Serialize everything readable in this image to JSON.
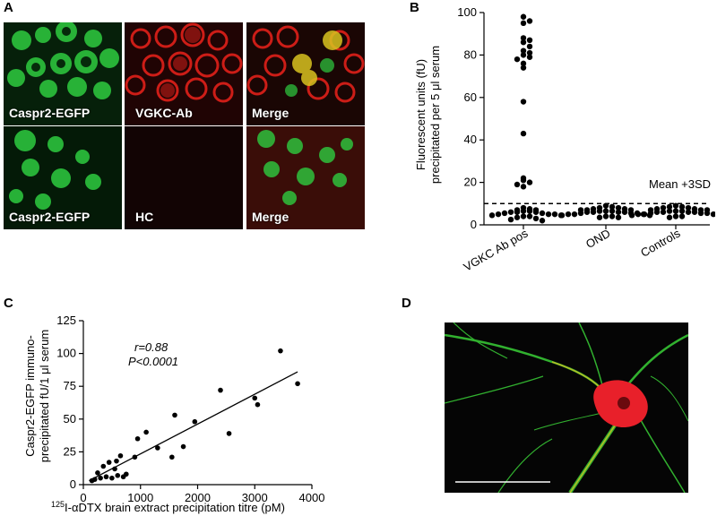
{
  "panel_letters": {
    "a": "A",
    "b": "B",
    "c": "C",
    "d": "D"
  },
  "panel_a": {
    "tiles": [
      {
        "label": "Caspr2-EGFP",
        "channel": "green"
      },
      {
        "label": "VGKC-Ab",
        "channel": "red"
      },
      {
        "label": "Merge",
        "channel": "merge"
      },
      {
        "label": "Caspr2-EGFP",
        "channel": "green"
      },
      {
        "label": "HC",
        "channel": "dark"
      },
      {
        "label": "Merge",
        "channel": "merge-dim"
      }
    ],
    "colors": {
      "green": "#2ecc40",
      "red": "#e0201a",
      "dark": "#120404"
    }
  },
  "chart_data": [
    {
      "type": "scatter",
      "panel": "B",
      "ylabel_line1": "Fluorescent units (fU)",
      "ylabel_line2": "precipitated per 5 μl serum",
      "categories": [
        "VGKC Ab pos",
        "OND",
        "Controls"
      ],
      "ylim": [
        0,
        100
      ],
      "yticks": [
        0,
        20,
        40,
        60,
        80,
        100
      ],
      "threshold": {
        "value": 10,
        "label": "Mean +3SD",
        "style": "dashed"
      },
      "series": [
        {
          "category": "VGKC Ab pos",
          "values": [
            98,
            96,
            95,
            88,
            87,
            86,
            84,
            82,
            81,
            80,
            79,
            78,
            76,
            74,
            58,
            43,
            22,
            21,
            20,
            19,
            18,
            8,
            7.5,
            7,
            7,
            6.5,
            6.5,
            6,
            6,
            6,
            5.5,
            5.5,
            5,
            5,
            5,
            4.5,
            4.5,
            4,
            4,
            3.5,
            3,
            2.5,
            2
          ]
        },
        {
          "category": "OND",
          "values": [
            9,
            8.5,
            8,
            8,
            7.5,
            7.5,
            7,
            7,
            7,
            6.5,
            6.5,
            6.5,
            6,
            6,
            6,
            6,
            5.5,
            5.5,
            5.5,
            5,
            5,
            5,
            4.5,
            4.5,
            4,
            4,
            3.5,
            3.5
          ]
        },
        {
          "category": "Controls",
          "values": [
            9,
            8.5,
            8.5,
            8,
            8,
            7.5,
            7.5,
            7,
            7,
            7,
            6.5,
            6.5,
            6.5,
            6,
            6,
            6,
            6,
            5.5,
            5.5,
            5.5,
            5,
            5,
            5,
            4.5,
            4.5,
            4,
            4,
            3.5
          ]
        }
      ],
      "grid": false,
      "marker_color": "#000000"
    },
    {
      "type": "scatter",
      "panel": "C",
      "ylabel_line1": "Caspr2-EGFP immuno-",
      "ylabel_line2": "precipitated fU/1 μl serum",
      "xlabel_sup": "125",
      "xlabel": "I-αDTX brain extract precipitation titre (pM)",
      "xlim": [
        0,
        4000
      ],
      "ylim": [
        0,
        125
      ],
      "xticks": [
        0,
        1000,
        2000,
        3000,
        4000
      ],
      "yticks": [
        0,
        25,
        50,
        75,
        100,
        125
      ],
      "annotation_r": "r=0.88",
      "annotation_p": "P<0.0001",
      "fit_line": {
        "x": [
          100,
          3750
        ],
        "y": [
          3,
          86
        ]
      },
      "points": [
        [
          150,
          3
        ],
        [
          200,
          4
        ],
        [
          250,
          9
        ],
        [
          300,
          5
        ],
        [
          350,
          14
        ],
        [
          400,
          6
        ],
        [
          450,
          17
        ],
        [
          500,
          5
        ],
        [
          550,
          12
        ],
        [
          580,
          18
        ],
        [
          600,
          7
        ],
        [
          650,
          22
        ],
        [
          700,
          6
        ],
        [
          750,
          8
        ],
        [
          900,
          21
        ],
        [
          950,
          35
        ],
        [
          1100,
          40
        ],
        [
          1300,
          28
        ],
        [
          1550,
          21
        ],
        [
          1600,
          53
        ],
        [
          1750,
          29
        ],
        [
          1950,
          48
        ],
        [
          2400,
          72
        ],
        [
          2550,
          39
        ],
        [
          3000,
          66
        ],
        [
          3050,
          61
        ],
        [
          3450,
          102
        ],
        [
          3750,
          77
        ]
      ],
      "grid": false
    }
  ],
  "panel_d": {
    "scale_bar": true,
    "colors": {
      "neuron": "#e8202a",
      "neurite": "#3ddc3a",
      "overlap": "#e6c020"
    }
  }
}
